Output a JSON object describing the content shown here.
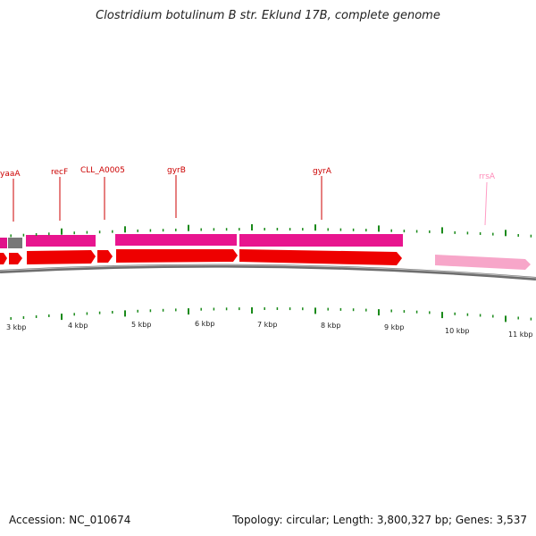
{
  "title": "Clostridium botulinum B str. Eklund 17B, complete genome",
  "footer": {
    "accession": "Accession: NC_010674",
    "summary": "Topology: circular; Length: 3,800,327 bp; Genes: 3,537"
  },
  "colors": {
    "cds": "#ff0000",
    "gene": "#ff1493",
    "rrna": "#ffa0c8",
    "backbone": "#808080",
    "tick": "#1a8a1a",
    "label_cds": "#cc0000",
    "label_rrna": "#ff80b0"
  },
  "genes": [
    {
      "name": "yaaA",
      "kind": "cds"
    },
    {
      "name": "recF",
      "kind": "cds"
    },
    {
      "name": "CLL_A0005",
      "kind": "cds"
    },
    {
      "name": "gyrB",
      "kind": "cds"
    },
    {
      "name": "gyrA",
      "kind": "cds"
    },
    {
      "name": "rrsA",
      "kind": "rrna"
    }
  ],
  "kbp_labels": [
    "3 kbp",
    "4 kbp",
    "5 kbp",
    "6 kbp",
    "7 kbp",
    "8 kbp",
    "9 kbp",
    "10 kbp",
    "11 kbp"
  ]
}
